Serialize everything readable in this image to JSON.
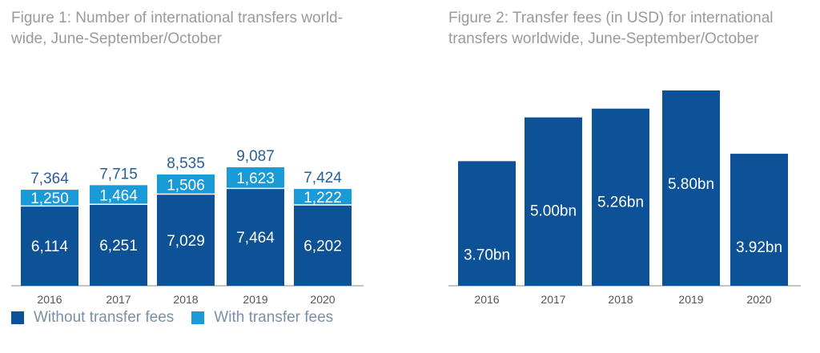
{
  "colors": {
    "dark_blue": "#0d5196",
    "light_blue": "#1a9ad6",
    "title_gray": "#9a9a9a",
    "label_blue": "#2a5e96",
    "axis_gray": "#8a8a8a"
  },
  "chart_data": [
    {
      "type": "bar",
      "stacked": true,
      "title": "Figure 1: Number of international transfers world-wide, June-September/October",
      "categories": [
        "2016",
        "2017",
        "2018",
        "2019",
        "2020"
      ],
      "series": [
        {
          "name": "Without transfer fees",
          "values": [
            6114,
            6251,
            7029,
            7464,
            6202
          ],
          "labels": [
            "6,114",
            "6,251",
            "7,029",
            "7,464",
            "6,202"
          ],
          "color": "#0d5196"
        },
        {
          "name": "With transfer fees",
          "values": [
            1250,
            1464,
            1506,
            1623,
            1222
          ],
          "labels": [
            "1,250",
            "1,464",
            "1,506",
            "1,623",
            "1,222"
          ],
          "color": "#1a9ad6"
        }
      ],
      "totals": [
        7364,
        7715,
        8535,
        9087,
        7424
      ],
      "total_labels": [
        "7,364",
        "7,715",
        "8,535",
        "9,087",
        "7,424"
      ],
      "legend": "bottom"
    },
    {
      "type": "bar",
      "title": "Figure 2: Transfer fees (in USD) for international transfers worldwide, June-September/October",
      "categories": [
        "2016",
        "2017",
        "2018",
        "2019",
        "2020"
      ],
      "values": [
        3.7,
        5.0,
        5.26,
        5.8,
        3.92
      ],
      "labels": [
        "3.70bn",
        "5.00bn",
        "5.26bn",
        "5.80bn",
        "3.92bn"
      ],
      "color": "#0d5196"
    }
  ]
}
